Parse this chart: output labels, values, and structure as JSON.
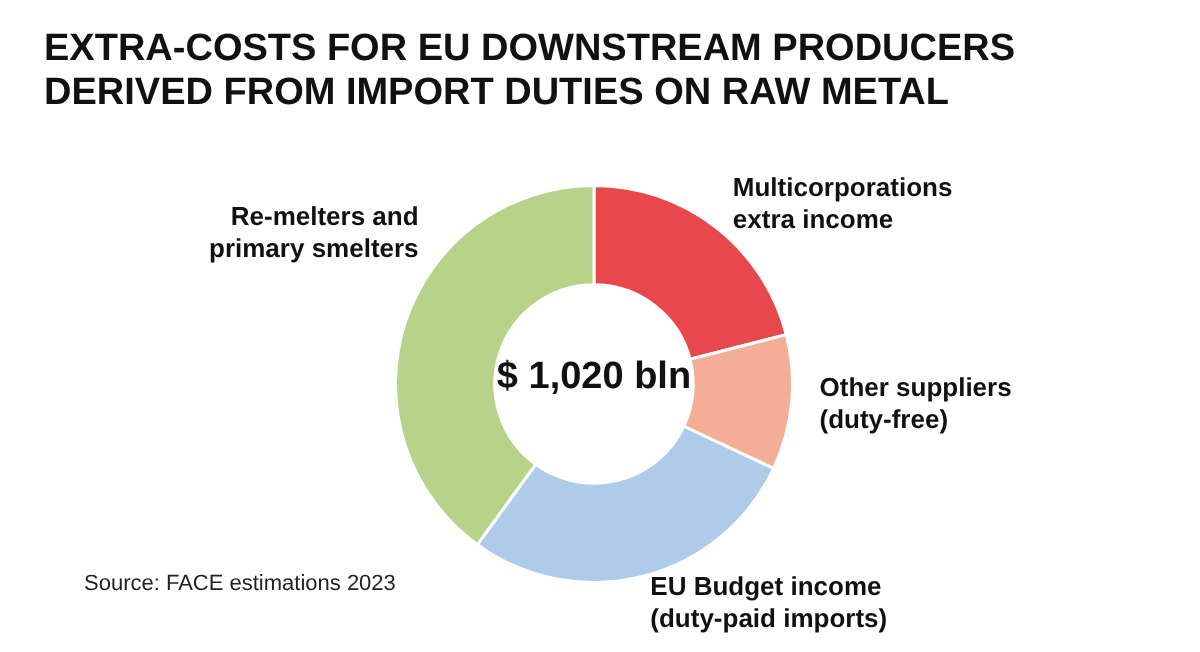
{
  "chart_data": {
    "type": "donut",
    "title": "EXTRA-COSTS FOR EU DOWNSTREAM PRODUCERS DERIVED FROM IMPORT DUTIES ON RAW METAL",
    "categories": [
      "Multicorporations extra income",
      "Other suppliers (duty-free)",
      "EU Budget income (duty-paid imports)",
      "Re-melters and primary smelters"
    ],
    "values": [
      21,
      11,
      28,
      40
    ],
    "colors": [
      "#e8474c",
      "#f4ae98",
      "#aecbea",
      "#b7d38a"
    ],
    "legend": false,
    "annotations": [
      "$ 1,020 bln",
      "Source: FACE estimations 2023"
    ]
  }
}
